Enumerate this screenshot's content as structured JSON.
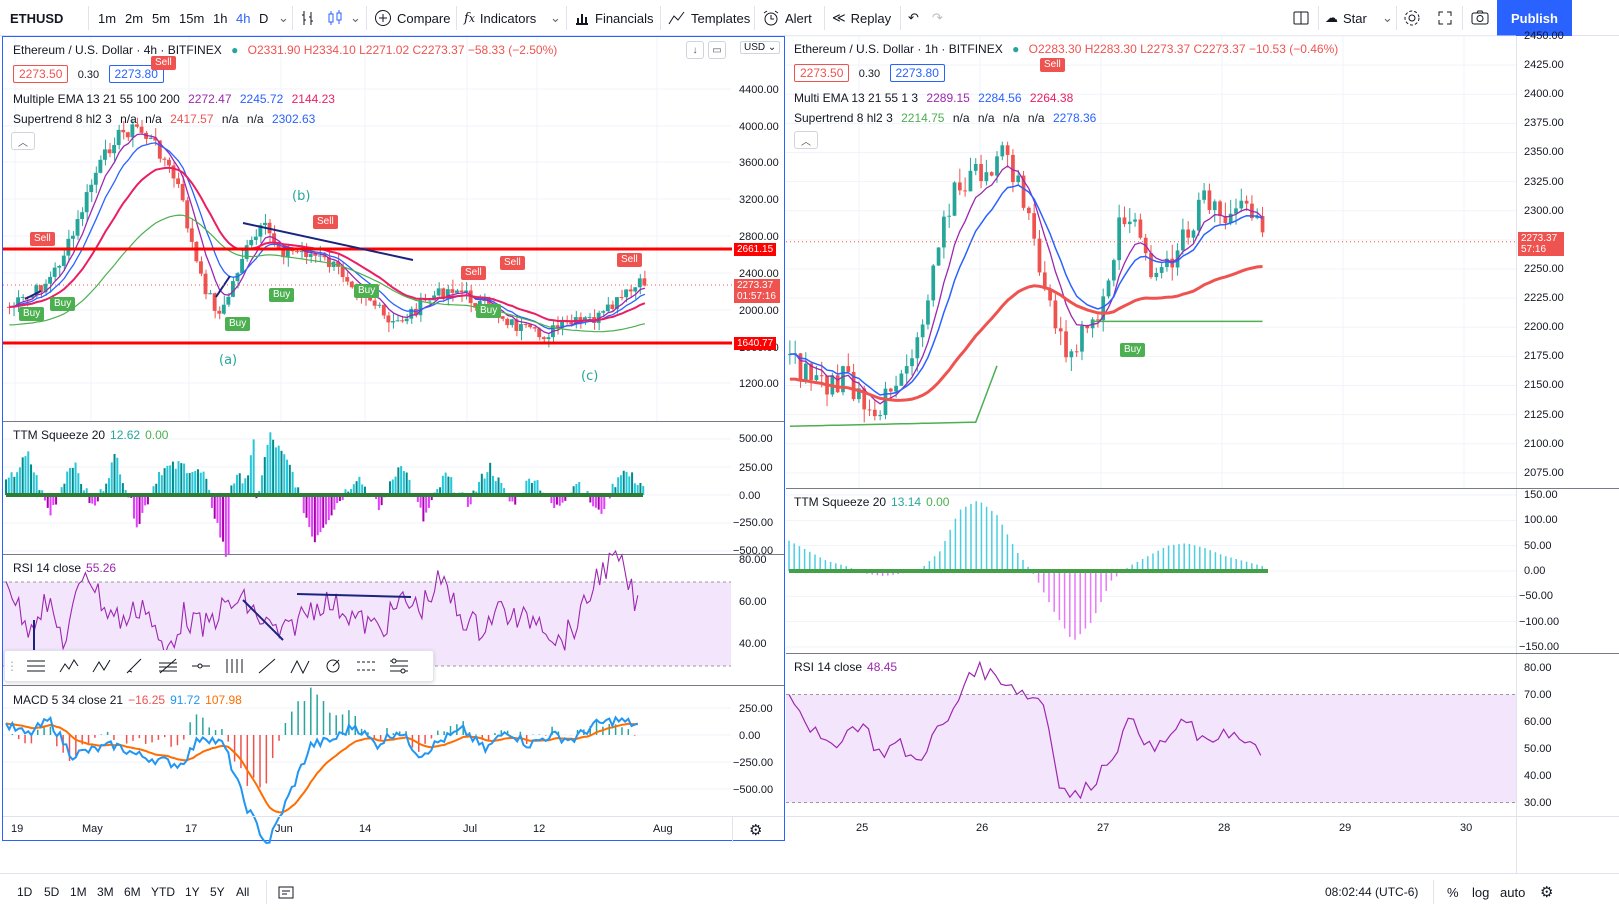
{
  "toolbar": {
    "symbol": "ETHUSD",
    "intervals": [
      "1m",
      "2m",
      "5m",
      "15m",
      "1h",
      "4h",
      "D"
    ],
    "active_interval": "4h",
    "compare": "Compare",
    "indicators": "Indicators",
    "financials": "Financials",
    "templates": "Templates",
    "alert": "Alert",
    "replay": "Replay",
    "layout_name": "Star",
    "publish": "Publish"
  },
  "left": {
    "title": "Ethereum / U.S. Dollar · 4h · BITFINEX",
    "ohlc": "O2331.90 H2334.10 L2271.02 C2273.37 −58.33 (−2.50%)",
    "bid": "2273.50",
    "spread": "0.30",
    "ask": "2273.80",
    "currency": "USD",
    "ema_name": "Multiple EMA 13 21 55 100 200",
    "ema_vals": [
      "2272.47",
      "2245.72",
      "2144.23"
    ],
    "st_name": "Supertrend 8 hl2 3",
    "st_vals": [
      "n/a",
      "n/a",
      "2417.57",
      "n/a",
      "n/a",
      "2302.63"
    ],
    "price_axis": [
      "4400.00",
      "4000.00",
      "3600.00",
      "3200.00",
      "2800.00",
      "2400.00",
      "2000.00",
      "1600.00",
      "1200.00"
    ],
    "hline_top": "2661.15",
    "hline_bottom": "1640.77",
    "last_price": "2273.37",
    "countdown": "01:57:16",
    "wave_b": "(b)",
    "wave_a": "(a)",
    "wave_c": "(c)",
    "ttm_name": "TTM Squeeze 20",
    "ttm_vals": [
      "12.62",
      "0.00"
    ],
    "ttm_axis": [
      "500.00",
      "250.00",
      "0.00",
      "−250.00",
      "−500.00"
    ],
    "rsi_name": "RSI 14 close",
    "rsi_val": "55.26",
    "rsi_axis": [
      "80.00",
      "60.00",
      "40.00"
    ],
    "macd_name": "MACD 5 34 close 21",
    "macd_vals": [
      "−16.25",
      "91.72",
      "107.98"
    ],
    "macd_axis": [
      "250.00",
      "0.00",
      "−250.00",
      "−500.00"
    ],
    "time_axis": [
      "19",
      "May",
      "17",
      "Jun",
      "14",
      "Jul",
      "12",
      "Aug"
    ]
  },
  "right": {
    "title": "Ethereum / U.S. Dollar · 1h · BITFINEX",
    "ohlc": "O2283.30 H2283.30 L2273.37 C2273.37 −10.53 (−0.46%)",
    "bid": "2273.50",
    "spread": "0.30",
    "ask": "2273.80",
    "ema_name": "Multi EMA 13 21 55 1 3",
    "ema_vals": [
      "2289.15",
      "2284.56",
      "2264.38"
    ],
    "st_name": "Supertrend 8 hl2 3",
    "st_vals": [
      "2214.75",
      "n/a",
      "n/a",
      "n/a",
      "n/a",
      "2278.36"
    ],
    "price_axis": [
      "2450.00",
      "2425.00",
      "2400.00",
      "2375.00",
      "2350.00",
      "2325.00",
      "2300.00",
      "2275.00",
      "2250.00",
      "2225.00",
      "2200.00",
      "2175.00",
      "2150.00",
      "2125.00",
      "2100.00",
      "2075.00"
    ],
    "last_price": "2273.37",
    "countdown": "57:16",
    "ttm_name": "TTM Squeeze 20",
    "ttm_vals": [
      "13.14",
      "0.00"
    ],
    "ttm_axis": [
      "150.00",
      "100.00",
      "50.00",
      "0.00",
      "−50.00",
      "−100.00",
      "−150.00"
    ],
    "rsi_name": "RSI 14 close",
    "rsi_val": "48.45",
    "rsi_axis": [
      "80.00",
      "70.00",
      "60.00",
      "50.00",
      "40.00",
      "30.00"
    ],
    "time_axis": [
      "25",
      "26",
      "27",
      "28",
      "29",
      "30"
    ]
  },
  "signals": {
    "sell": "Sell",
    "buy": "Buy"
  },
  "bottom": {
    "ranges": [
      "1D",
      "5D",
      "1M",
      "3M",
      "6M",
      "YTD",
      "1Y",
      "5Y",
      "All"
    ],
    "clock": "08:02:44 (UTC-6)",
    "percent": "%",
    "log": "log",
    "auto": "auto"
  },
  "colors": {
    "up": "#26a69a",
    "down": "#ef5350",
    "accent": "#2962ff",
    "hline": "#ff0000",
    "rsi_bg": "#f3e5fc",
    "rsi_line": "#9c27b0"
  }
}
